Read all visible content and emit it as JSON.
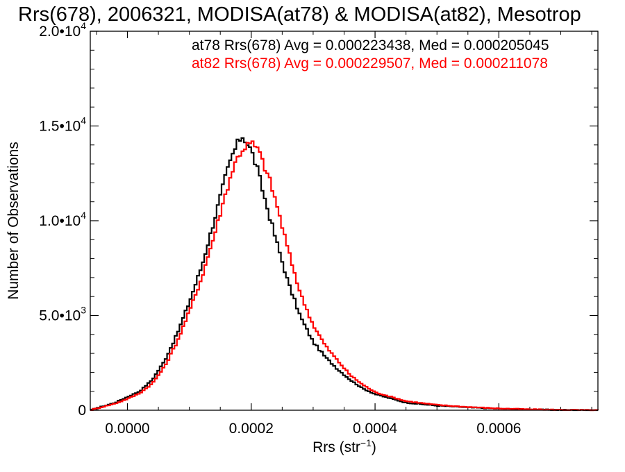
{
  "chart_data": {
    "type": "line",
    "title": "Rrs(678), 2006321, MODISA(at78) & MODISA(at82), Mesotrop",
    "xlabel": "Rrs (str",
    "xlabel_exponent": "−1",
    "xlabel_close": ")",
    "ylabel": "Number of Observations",
    "xlim": [
      -6e-05,
      0.00076
    ],
    "ylim": [
      0,
      20000
    ],
    "x_ticks": [
      {
        "value": 0.0,
        "label": "0.0000"
      },
      {
        "value": 0.0002,
        "label": "0.0002"
      },
      {
        "value": 0.0004,
        "label": "0.0004"
      },
      {
        "value": 0.0006,
        "label": "0.0006"
      }
    ],
    "y_ticks": [
      {
        "value": 0,
        "label": "0",
        "exp": ""
      },
      {
        "value": 5000,
        "label": "5.0•10",
        "exp": "3"
      },
      {
        "value": 10000,
        "label": "1.0•10",
        "exp": "4"
      },
      {
        "value": 15000,
        "label": "1.5•10",
        "exp": "4"
      },
      {
        "value": 20000,
        "label": "2.0•10",
        "exp": "4"
      }
    ],
    "grid": false,
    "legend_position": "top-right",
    "series": [
      {
        "name": "at78",
        "color": "#000000",
        "stats_text": "at78 Rrs(678) Avg = 0.000223438, Med = 0.000205045",
        "x": [
          -6e-05,
          -4e-05,
          -2e-05,
          0.0,
          2e-05,
          4e-05,
          6e-05,
          8e-05,
          0.0001,
          0.00012,
          0.00014,
          0.00016,
          0.00017,
          0.00018,
          0.000185,
          0.00019,
          0.0002,
          0.00021,
          0.00022,
          0.00024,
          0.00026,
          0.00028,
          0.0003,
          0.00032,
          0.00034,
          0.00036,
          0.00038,
          0.0004,
          0.00045,
          0.0005,
          0.00055,
          0.0006,
          0.00065,
          0.0007,
          0.00076
        ],
        "values": [
          0,
          200,
          400,
          700,
          1000,
          1600,
          2600,
          4000,
          5700,
          7600,
          10000,
          12500,
          13500,
          14200,
          14500,
          14300,
          13700,
          12700,
          11400,
          9000,
          6700,
          4900,
          3600,
          2800,
          2150,
          1600,
          1150,
          850,
          400,
          240,
          150,
          80,
          40,
          15,
          0
        ]
      },
      {
        "name": "at82",
        "color": "#ff0000",
        "stats_text": "at82 Rrs(678) Avg = 0.000229507, Med = 0.000211078",
        "x": [
          -6e-05,
          -4e-05,
          -2e-05,
          0.0,
          2e-05,
          4e-05,
          6e-05,
          8e-05,
          0.0001,
          0.00012,
          0.00014,
          0.00016,
          0.00017,
          0.00018,
          0.00019,
          0.0002,
          0.00021,
          0.00022,
          0.00023,
          0.00024,
          0.00026,
          0.00028,
          0.0003,
          0.00032,
          0.00034,
          0.00036,
          0.00038,
          0.0004,
          0.00045,
          0.0005,
          0.00055,
          0.0006,
          0.00065,
          0.0007,
          0.00076
        ],
        "values": [
          0,
          180,
          350,
          600,
          900,
          1400,
          2300,
          3600,
          5200,
          7000,
          9200,
          11600,
          12700,
          13500,
          13900,
          14100,
          13800,
          13000,
          12100,
          11000,
          8400,
          6100,
          4500,
          3400,
          2600,
          1850,
          1350,
          950,
          480,
          280,
          170,
          95,
          45,
          20,
          0
        ]
      }
    ]
  }
}
